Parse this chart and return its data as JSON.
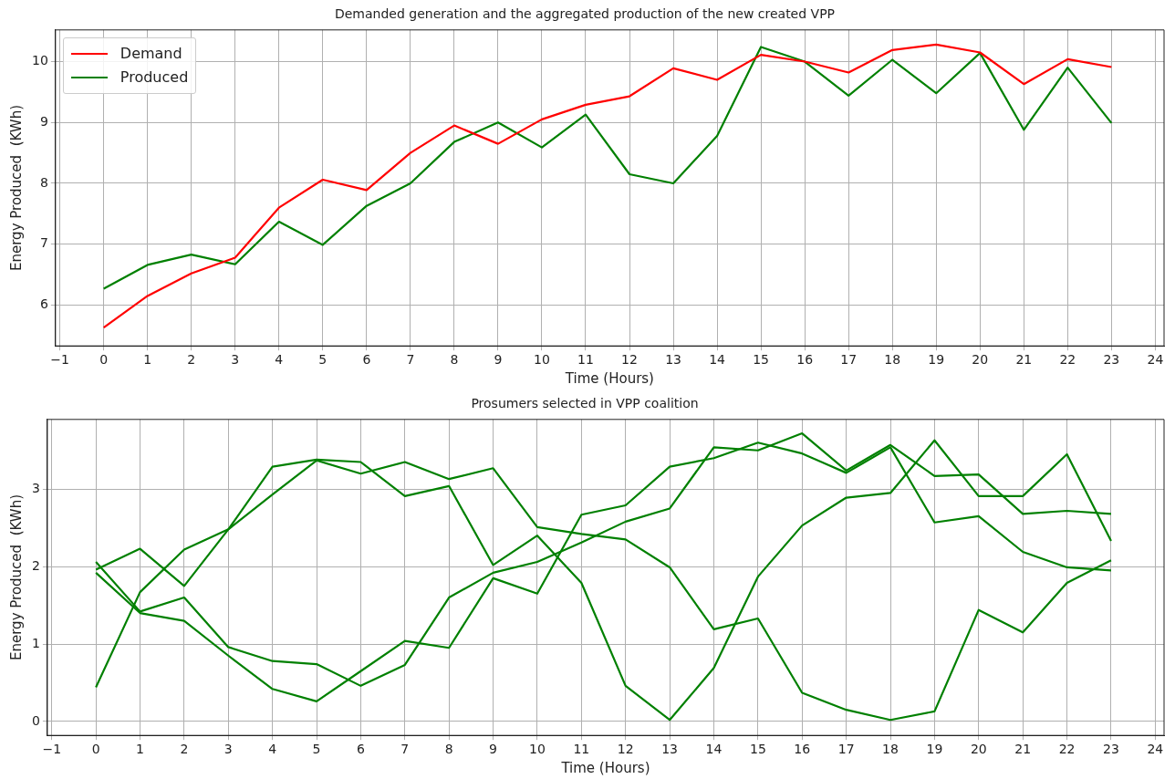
{
  "chart_data": [
    {
      "type": "line",
      "title": "Demanded generation and the aggregated production of the new created VPP",
      "xlabel": "Time (Hours)",
      "ylabel": "Energy Produced  (KWh)",
      "x": [
        0,
        1,
        2,
        3,
        4,
        5,
        6,
        7,
        8,
        9,
        10,
        11,
        12,
        13,
        14,
        15,
        16,
        17,
        18,
        19,
        20,
        21,
        22,
        23
      ],
      "series": [
        {
          "name": "Demand",
          "color": "#ff0000",
          "values": [
            5.63,
            6.15,
            6.52,
            6.78,
            7.6,
            8.06,
            7.89,
            8.5,
            8.95,
            8.65,
            9.05,
            9.29,
            9.43,
            9.89,
            9.7,
            10.11,
            10.0,
            9.82,
            10.19,
            10.28,
            10.15,
            9.63,
            10.04,
            9.91
          ]
        },
        {
          "name": "Produced",
          "color": "#008000",
          "values": [
            6.27,
            6.66,
            6.83,
            6.67,
            7.37,
            6.99,
            7.63,
            8.0,
            8.68,
            9.0,
            8.59,
            9.13,
            8.15,
            8.0,
            8.78,
            10.24,
            10.0,
            9.44,
            10.03,
            9.48,
            10.14,
            8.88,
            9.9,
            8.99
          ]
        }
      ],
      "xlim": [
        -1.1,
        24.2
      ],
      "xticks": [
        -1,
        0,
        1,
        2,
        3,
        4,
        5,
        6,
        7,
        8,
        9,
        10,
        11,
        12,
        13,
        14,
        15,
        16,
        17,
        18,
        19,
        20,
        21,
        22,
        23,
        24
      ],
      "ylim": [
        5.33,
        10.52
      ],
      "yticks": [
        6,
        7,
        8,
        9,
        10
      ],
      "grid": true,
      "legend": "top left"
    },
    {
      "type": "line",
      "title": "Prosumers selected in VPP coalition",
      "xlabel": "Time (Hours)",
      "ylabel": "Energy Produced  (KWh)",
      "x": [
        0,
        1,
        2,
        3,
        4,
        5,
        6,
        7,
        8,
        9,
        10,
        11,
        12,
        13,
        14,
        15,
        16,
        17,
        18,
        19,
        20,
        21,
        22,
        23
      ],
      "series": [
        {
          "color": "#008000",
          "values": [
            0.44,
            1.67,
            2.22,
            2.48,
            2.93,
            3.37,
            3.2,
            3.35,
            3.13,
            3.27,
            2.51,
            2.42,
            2.35,
            1.99,
            1.19,
            1.33,
            0.37,
            0.15,
            0.02,
            0.13,
            1.44,
            1.15,
            1.79,
            2.08
          ]
        },
        {
          "color": "#008000",
          "values": [
            1.96,
            2.23,
            1.75,
            2.48,
            3.29,
            3.38,
            3.35,
            2.91,
            3.04,
            2.02,
            2.4,
            1.79,
            0.46,
            0.02,
            0.69,
            1.87,
            2.53,
            2.89,
            2.95,
            3.63,
            2.91,
            2.91,
            3.45,
            2.33
          ]
        },
        {
          "color": "#008000",
          "values": [
            2.06,
            1.42,
            1.6,
            0.96,
            0.78,
            0.74,
            0.46,
            0.73,
            1.6,
            1.92,
            2.06,
            2.31,
            2.58,
            2.75,
            3.54,
            3.5,
            3.72,
            3.24,
            3.57,
            3.17,
            3.19,
            2.68,
            2.72,
            2.68
          ]
        },
        {
          "color": "#008000",
          "values": [
            1.92,
            1.4,
            1.3,
            0.85,
            0.42,
            0.26,
            0.65,
            1.04,
            0.95,
            1.85,
            1.65,
            2.67,
            2.79,
            3.29,
            3.4,
            3.6,
            3.46,
            3.21,
            3.54,
            2.57,
            2.65,
            2.19,
            1.99,
            1.95
          ]
        }
      ],
      "xlim": [
        -1.1,
        24.2
      ],
      "xticks": [
        -1,
        0,
        1,
        2,
        3,
        4,
        5,
        6,
        7,
        8,
        9,
        10,
        11,
        12,
        13,
        14,
        15,
        16,
        17,
        18,
        19,
        20,
        21,
        22,
        23,
        24
      ],
      "ylim": [
        -0.18,
        3.9
      ],
      "yticks": [
        0,
        1,
        2,
        3
      ],
      "grid": true
    }
  ]
}
